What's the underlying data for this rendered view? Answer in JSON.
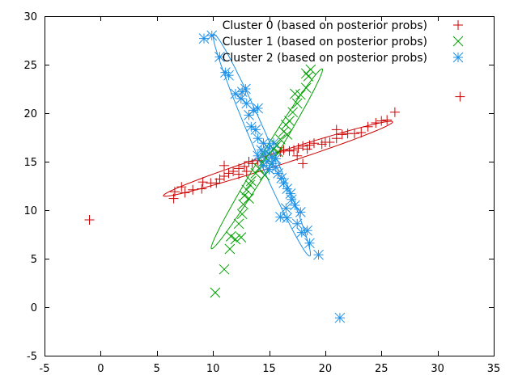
{
  "chart_data": {
    "type": "scatter",
    "title": "",
    "xlabel": "",
    "ylabel": "",
    "xlim": [
      -5,
      35
    ],
    "ylim": [
      -5,
      30
    ],
    "xticks": [
      -5,
      0,
      5,
      10,
      15,
      20,
      25,
      30,
      35
    ],
    "yticks": [
      -5,
      0,
      5,
      10,
      15,
      20,
      25,
      30
    ],
    "grid": false,
    "legend_position": "top-right",
    "series": [
      {
        "name": "Cluster 0 (based on posterior probs)",
        "marker": "plus",
        "color": "#cc0000",
        "points": [
          [
            -1,
            9
          ],
          [
            32,
            21.7
          ],
          [
            26.2,
            20.1
          ],
          [
            25.5,
            19.3
          ],
          [
            25.0,
            19.2
          ],
          [
            24.5,
            19.0
          ],
          [
            23.8,
            18.6
          ],
          [
            23.2,
            18.0
          ],
          [
            22.6,
            17.9
          ],
          [
            22.0,
            17.9
          ],
          [
            21.5,
            17.8
          ],
          [
            21.0,
            17.4
          ],
          [
            21.0,
            18.3
          ],
          [
            20.4,
            17.0
          ],
          [
            20.0,
            17.0
          ],
          [
            19.7,
            16.8
          ],
          [
            19.0,
            16.9
          ],
          [
            18.6,
            16.7
          ],
          [
            18.4,
            16.3
          ],
          [
            18.0,
            16.6
          ],
          [
            17.6,
            16.4
          ],
          [
            17.2,
            16.2
          ],
          [
            16.8,
            16.1
          ],
          [
            16.3,
            16.2
          ],
          [
            16.0,
            16.0
          ],
          [
            17.5,
            15.6
          ],
          [
            18.0,
            14.8
          ],
          [
            13.5,
            14.8
          ],
          [
            13.2,
            15.0
          ],
          [
            12.8,
            14.5
          ],
          [
            12.3,
            14.3
          ],
          [
            11.8,
            14.0
          ],
          [
            11.4,
            13.8
          ],
          [
            11.0,
            13.5
          ],
          [
            10.6,
            13.2
          ],
          [
            11.0,
            14.6
          ],
          [
            10.3,
            12.8
          ],
          [
            9.8,
            12.8
          ],
          [
            9.1,
            12.9
          ],
          [
            9.0,
            12.2
          ],
          [
            8.2,
            12.1
          ],
          [
            7.5,
            11.8
          ],
          [
            7.2,
            12.4
          ],
          [
            6.6,
            11.9
          ],
          [
            6.5,
            11.2
          ],
          [
            12.3,
            13.7
          ],
          [
            13.0,
            14.0
          ],
          [
            14.0,
            15.1
          ]
        ]
      },
      {
        "name": "Cluster 1 (based on posterior probs)",
        "marker": "cross",
        "color": "#00a000",
        "points": [
          [
            10.2,
            1.5
          ],
          [
            11.0,
            3.9
          ],
          [
            11.5,
            6.0
          ],
          [
            11.6,
            7.3
          ],
          [
            12.0,
            7.0
          ],
          [
            12.5,
            7.2
          ],
          [
            12.3,
            8.6
          ],
          [
            12.6,
            9.6
          ],
          [
            12.7,
            10.6
          ],
          [
            12.8,
            11.5
          ],
          [
            13.0,
            12.1
          ],
          [
            13.3,
            12.6
          ],
          [
            13.4,
            13.0
          ],
          [
            13.8,
            13.8
          ],
          [
            14.1,
            14.3
          ],
          [
            14.4,
            14.9
          ],
          [
            14.7,
            15.4
          ],
          [
            15.0,
            15.8
          ],
          [
            15.4,
            16.3
          ],
          [
            15.7,
            16.7
          ],
          [
            16.0,
            17.3
          ],
          [
            16.3,
            18.1
          ],
          [
            16.8,
            19.2
          ],
          [
            17.1,
            20.1
          ],
          [
            17.5,
            21.0
          ],
          [
            17.8,
            21.9
          ],
          [
            18.3,
            22.6
          ],
          [
            18.5,
            23.8
          ],
          [
            18.7,
            24.5
          ],
          [
            18.3,
            24.1
          ],
          [
            16.6,
            17.8
          ],
          [
            15.8,
            16.0
          ],
          [
            14.6,
            13.6
          ],
          [
            13.2,
            11.2
          ],
          [
            16.5,
            18.8
          ],
          [
            17.3,
            22.0
          ]
        ]
      },
      {
        "name": "Cluster 2 (based on posterior probs)",
        "marker": "star",
        "color": "#1e90e6",
        "points": [
          [
            9.2,
            27.7
          ],
          [
            9.9,
            28.0
          ],
          [
            10.6,
            25.8
          ],
          [
            11.1,
            24.2
          ],
          [
            11.4,
            23.9
          ],
          [
            12.0,
            22.0
          ],
          [
            12.6,
            22.2
          ],
          [
            12.9,
            22.5
          ],
          [
            12.5,
            21.5
          ],
          [
            13.0,
            21.0
          ],
          [
            13.2,
            19.8
          ],
          [
            13.6,
            20.3
          ],
          [
            14.0,
            20.5
          ],
          [
            13.4,
            18.6
          ],
          [
            13.8,
            18.3
          ],
          [
            14.0,
            17.4
          ],
          [
            14.5,
            16.9
          ],
          [
            14.3,
            16.2
          ],
          [
            14.6,
            15.8
          ],
          [
            15.0,
            16.4
          ],
          [
            15.2,
            15.5
          ],
          [
            14.8,
            15.0
          ],
          [
            15.3,
            14.8
          ],
          [
            15.6,
            14.4
          ],
          [
            15.8,
            13.8
          ],
          [
            16.1,
            13.3
          ],
          [
            16.3,
            12.8
          ],
          [
            16.6,
            12.2
          ],
          [
            16.9,
            11.7
          ],
          [
            17.0,
            11.1
          ],
          [
            16.5,
            10.2
          ],
          [
            17.3,
            10.5
          ],
          [
            17.8,
            9.8
          ],
          [
            17.5,
            8.6
          ],
          [
            17.9,
            7.7
          ],
          [
            18.4,
            7.9
          ],
          [
            18.6,
            6.6
          ],
          [
            19.4,
            5.4
          ],
          [
            16.6,
            9.2
          ],
          [
            16.0,
            9.3
          ],
          [
            21.3,
            -1.1
          ],
          [
            14.0,
            15.6
          ],
          [
            15.6,
            15.3
          ],
          [
            15.0,
            14.2
          ],
          [
            14.5,
            14.6
          ],
          [
            15.4,
            16.9
          ]
        ]
      }
    ],
    "ellipses": [
      {
        "series": 0,
        "center": [
          15.8,
          15.3
        ],
        "semi_major": 10.9,
        "semi_minor": 0.65,
        "angle_deg": 20.5
      },
      {
        "series": 1,
        "center": [
          14.8,
          15.3
        ],
        "semi_major": 10.5,
        "semi_minor": 0.6,
        "angle_deg": 62.0
      },
      {
        "series": 2,
        "center": [
          14.35,
          16.7
        ],
        "semi_major": 12.2,
        "semi_minor": 0.75,
        "angle_deg": -69.5
      }
    ]
  }
}
